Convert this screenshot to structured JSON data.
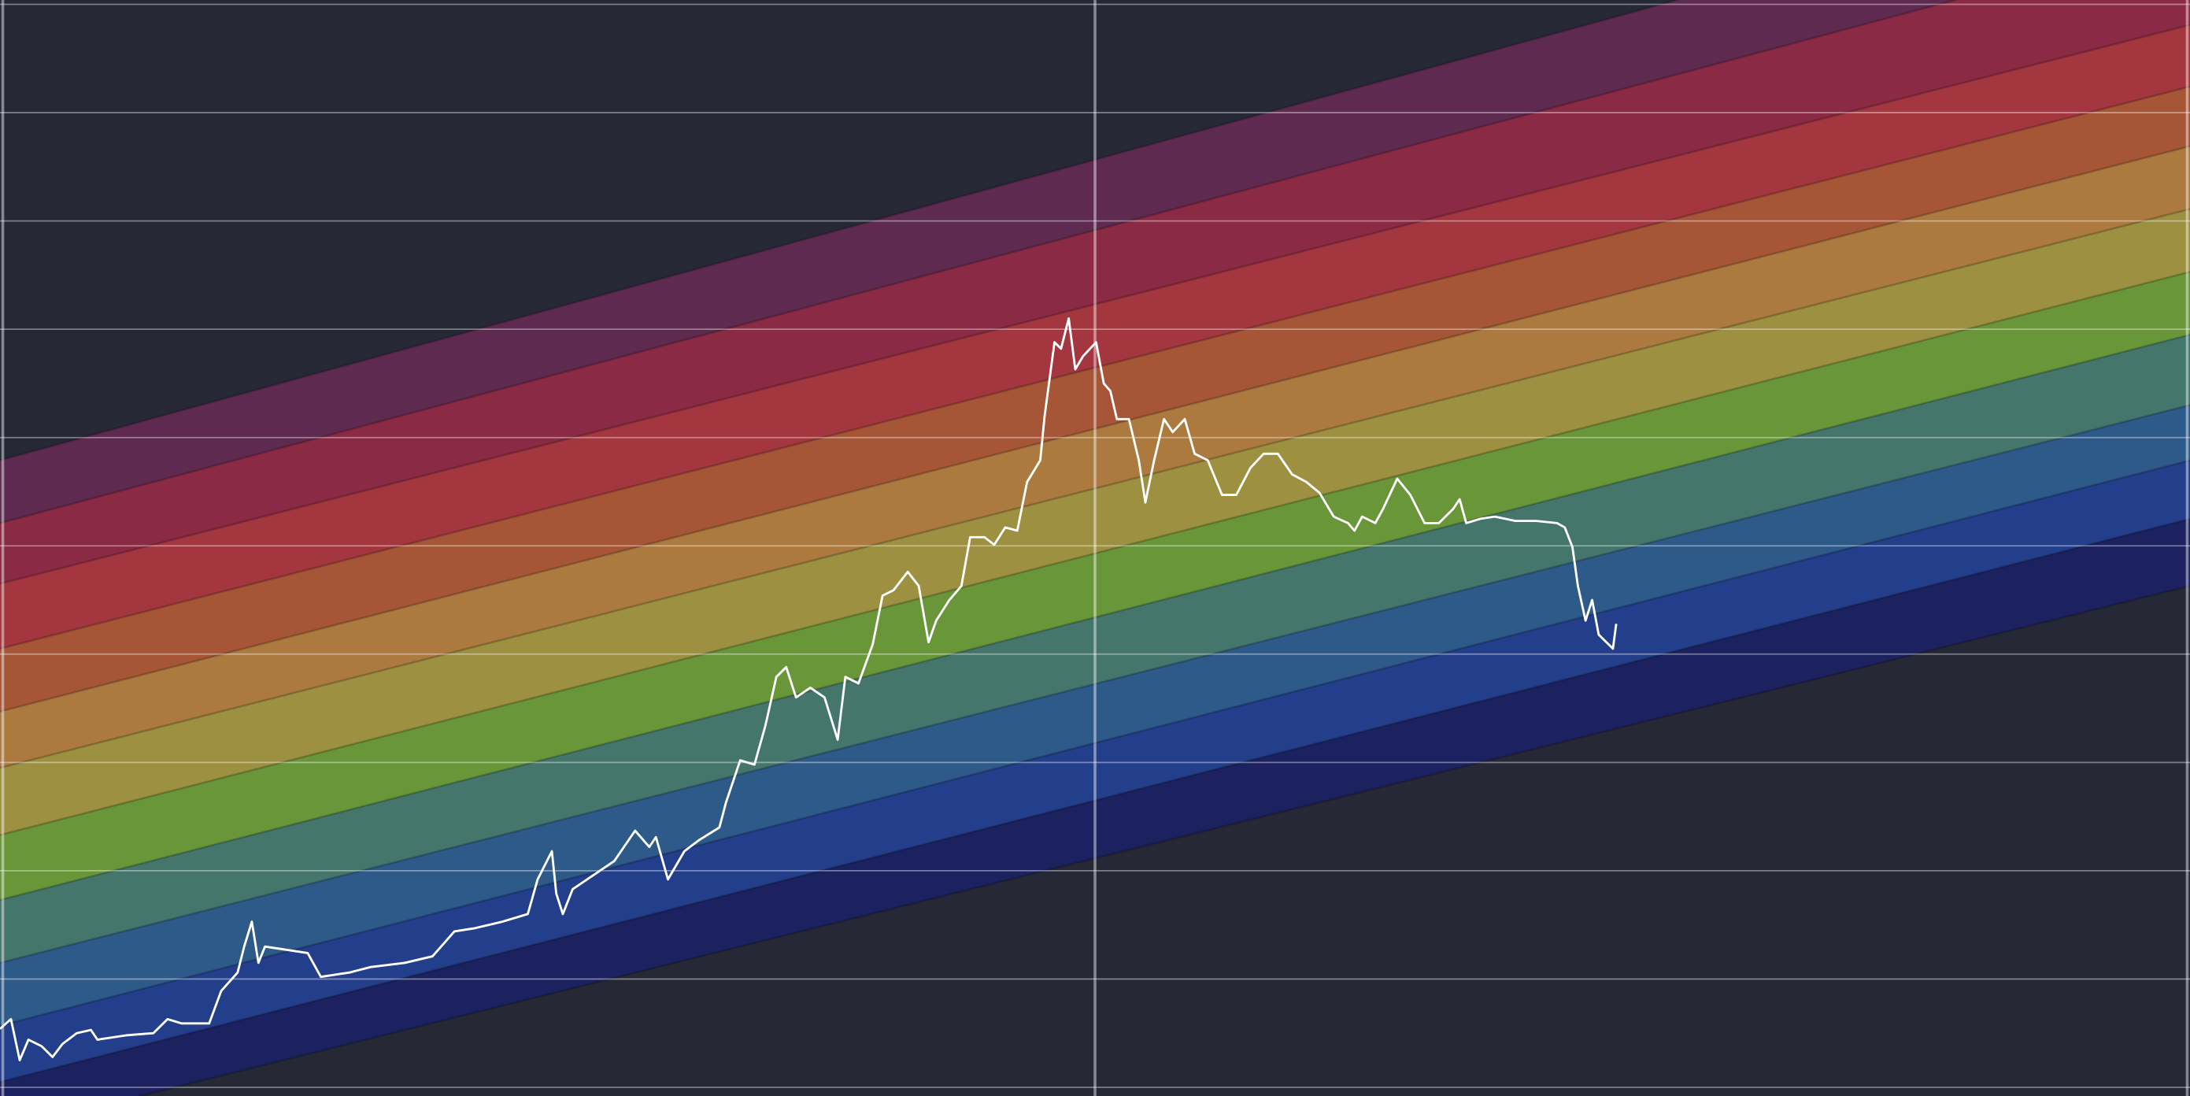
{
  "chart_data": {
    "type": "rainbow",
    "xlim": [
      0,
      2
    ],
    "xticks": [
      0,
      1,
      2
    ],
    "ylim": [
      -0.08,
      10.04
    ],
    "yticks": [
      0,
      1,
      2,
      3,
      4,
      5,
      6,
      7,
      8,
      9,
      10
    ],
    "grid": true,
    "band_colors": [
      "#5e2a50",
      "#8a2a45",
      "#a3363f",
      "#a65636",
      "#ac7a3f",
      "#9d9040",
      "#6a963a",
      "#44766c",
      "#2e5a8a",
      "#233e8a",
      "#1c2260"
    ],
    "band_edges": [
      [
        5.79,
        11.34
      ],
      [
        5.21,
        10.62
      ],
      [
        4.65,
        9.81
      ],
      [
        4.05,
        9.24
      ],
      [
        3.47,
        8.69
      ],
      [
        2.95,
        8.11
      ],
      [
        2.33,
        7.53
      ],
      [
        1.73,
        6.95
      ],
      [
        1.15,
        6.3
      ],
      [
        0.57,
        5.79
      ],
      [
        0.05,
        5.25
      ],
      [
        -0.4,
        4.63
      ]
    ],
    "series": [
      {
        "color": "#ffffff",
        "x": [
          0,
          0.01,
          0.018,
          0.026,
          0.038,
          0.048,
          0.057,
          0.07,
          0.083,
          0.089,
          0.115,
          0.14,
          0.153,
          0.166,
          0.191,
          0.202,
          0.217,
          0.223,
          0.23,
          0.236,
          0.242,
          0.255,
          0.281,
          0.293,
          0.319,
          0.338,
          0.37,
          0.395,
          0.415,
          0.434,
          0.459,
          0.482,
          0.491,
          0.504,
          0.508,
          0.514,
          0.523,
          0.542,
          0.561,
          0.58,
          0.593,
          0.599,
          0.61,
          0.625,
          0.638,
          0.657,
          0.663,
          0.676,
          0.689,
          0.699,
          0.709,
          0.718,
          0.727,
          0.74,
          0.753,
          0.765,
          0.772,
          0.784,
          0.797,
          0.806,
          0.816,
          0.829,
          0.839,
          0.848,
          0.855,
          0.867,
          0.878,
          0.886,
          0.899,
          0.908,
          0.918,
          0.929,
          0.938,
          0.95,
          0.954,
          0.963,
          0.969,
          0.976,
          0.982,
          0.989,
          1.001,
          1.008,
          1.014,
          1.02,
          1.031,
          1.04,
          1.046,
          1.054,
          1.063,
          1.071,
          1.082,
          1.091,
          1.103,
          1.116,
          1.129,
          1.142,
          1.154,
          1.167,
          1.18,
          1.193,
          1.205,
          1.218,
          1.231,
          1.237,
          1.244,
          1.256,
          1.263,
          1.276,
          1.288,
          1.301,
          1.314,
          1.327,
          1.333,
          1.339,
          1.352,
          1.365,
          1.384,
          1.403,
          1.422,
          1.429,
          1.436,
          1.441,
          1.448,
          1.454,
          1.46,
          1.473,
          1.476
        ],
        "values": [
          0.54,
          0.63,
          0.25,
          0.44,
          0.38,
          0.28,
          0.4,
          0.5,
          0.53,
          0.44,
          0.48,
          0.5,
          0.63,
          0.59,
          0.59,
          0.89,
          1.06,
          1.3,
          1.53,
          1.15,
          1.3,
          1.28,
          1.24,
          1.02,
          1.06,
          1.11,
          1.15,
          1.21,
          1.44,
          1.47,
          1.53,
          1.6,
          1.92,
          2.18,
          1.79,
          1.6,
          1.83,
          1.96,
          2.09,
          2.37,
          2.22,
          2.31,
          1.92,
          2.18,
          2.28,
          2.4,
          2.63,
          3.02,
          2.98,
          3.34,
          3.79,
          3.88,
          3.6,
          3.69,
          3.6,
          3.21,
          3.79,
          3.73,
          4.09,
          4.54,
          4.59,
          4.76,
          4.63,
          4.11,
          4.31,
          4.5,
          4.63,
          5.08,
          5.08,
          5.01,
          5.17,
          5.14,
          5.59,
          5.79,
          6.2,
          6.88,
          6.82,
          7.1,
          6.63,
          6.75,
          6.88,
          6.5,
          6.43,
          6.17,
          6.17,
          5.79,
          5.4,
          5.79,
          6.17,
          6.05,
          6.17,
          5.85,
          5.79,
          5.47,
          5.47,
          5.72,
          5.85,
          5.85,
          5.66,
          5.59,
          5.49,
          5.27,
          5.21,
          5.14,
          5.27,
          5.21,
          5.34,
          5.62,
          5.47,
          5.21,
          5.21,
          5.34,
          5.43,
          5.21,
          5.25,
          5.27,
          5.23,
          5.23,
          5.21,
          5.17,
          4.99,
          4.63,
          4.31,
          4.5,
          4.18,
          4.05,
          4.28
        ]
      }
    ]
  }
}
